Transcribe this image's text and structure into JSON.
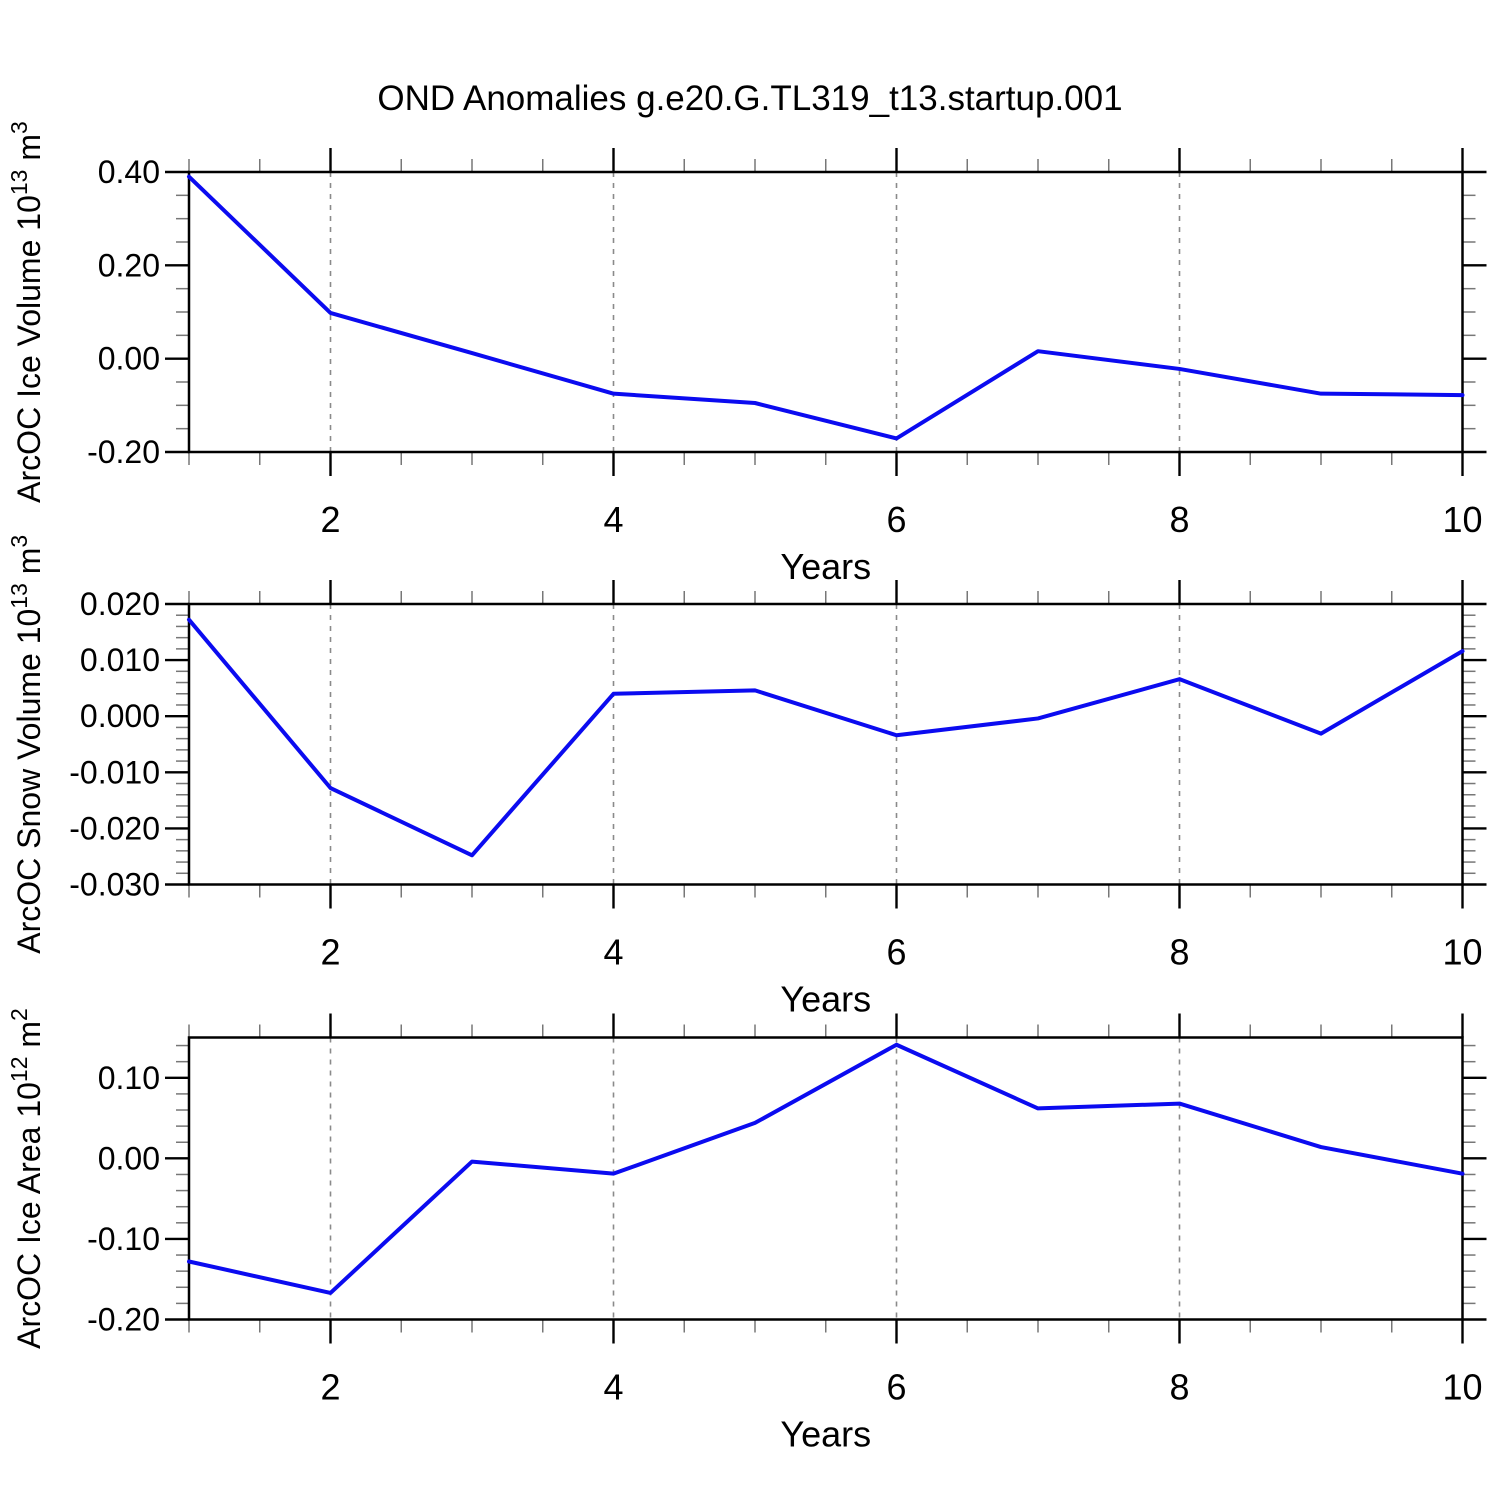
{
  "title": "OND Anomalies g.e20.G.TL319_t13.startup.001",
  "colors": {
    "line": "#0b0bf0",
    "grid": "#8a8a8a",
    "frame": "#000000",
    "minor_tick": "#777777"
  },
  "chart_data": [
    {
      "id": "ice-volume",
      "type": "line",
      "ylabel": "ArcOC Ice Volume 10^13 m^3",
      "ylabel_parts": [
        "ArcOC Ice Volume 10",
        "13",
        " m",
        "3"
      ],
      "xlabel": "Years",
      "x": [
        1,
        2,
        3,
        4,
        5,
        6,
        7,
        8,
        9,
        10
      ],
      "y": [
        0.39,
        0.098,
        0.012,
        -0.075,
        -0.095,
        -0.171,
        0.016,
        -0.022,
        -0.075,
        -0.078
      ],
      "ylim": [
        -0.2,
        0.4
      ],
      "yticks": [
        0.4,
        0.2,
        0.0,
        -0.2
      ],
      "ytick_labels": [
        "0.40",
        "0.20",
        "0.00",
        "-0.20"
      ],
      "y_minor_step": 0.05,
      "xlim": [
        1,
        10
      ],
      "xticks": [
        2,
        4,
        6,
        8,
        10
      ],
      "xtick_labels": [
        "2",
        "4",
        "6",
        "8",
        "10"
      ],
      "x_minor_step": 0.5,
      "grid_x": [
        2,
        4,
        6,
        8
      ],
      "legend": "none",
      "grid": "vertical-dashed"
    },
    {
      "id": "snow-volume",
      "type": "line",
      "ylabel": "ArcOC Snow Volume 10^13 m^3",
      "ylabel_parts": [
        "ArcOC Snow Volume 10",
        "13",
        " m",
        "3"
      ],
      "xlabel": "Years",
      "x": [
        1,
        2,
        3,
        4,
        5,
        6,
        7,
        8,
        9,
        10
      ],
      "y": [
        0.0172,
        -0.0128,
        -0.0248,
        0.004,
        0.0046,
        -0.0034,
        -0.0004,
        0.0066,
        -0.0031,
        0.0116
      ],
      "ylim": [
        -0.03,
        0.02
      ],
      "yticks": [
        0.02,
        0.01,
        0.0,
        -0.01,
        -0.02,
        -0.03
      ],
      "ytick_labels": [
        "0.020",
        "0.010",
        "0.000",
        "-0.010",
        "-0.020",
        "-0.030"
      ],
      "y_minor_step": 0.002,
      "xlim": [
        1,
        10
      ],
      "xticks": [
        2,
        4,
        6,
        8,
        10
      ],
      "xtick_labels": [
        "2",
        "4",
        "6",
        "8",
        "10"
      ],
      "x_minor_step": 0.5,
      "grid_x": [
        2,
        4,
        6,
        8
      ],
      "legend": "none",
      "grid": "vertical-dashed"
    },
    {
      "id": "ice-area",
      "type": "line",
      "ylabel": "ArcOC Ice Area 10^12 m^2",
      "ylabel_parts": [
        "ArcOC Ice Area 10",
        "12",
        " m",
        "2"
      ],
      "xlabel": "Years",
      "x": [
        1,
        2,
        3,
        4,
        5,
        6,
        7,
        8,
        9,
        10
      ],
      "y": [
        -0.128,
        -0.167,
        -0.004,
        -0.019,
        0.044,
        0.141,
        0.062,
        0.068,
        0.014,
        -0.019
      ],
      "ylim": [
        -0.2,
        0.15
      ],
      "yticks": [
        0.1,
        0.0,
        -0.1,
        -0.2
      ],
      "ytick_labels": [
        "0.10",
        "0.00",
        "-0.10",
        "-0.20"
      ],
      "y_minor_step": 0.02,
      "xlim": [
        1,
        10
      ],
      "xticks": [
        2,
        4,
        6,
        8,
        10
      ],
      "xtick_labels": [
        "2",
        "4",
        "6",
        "8",
        "10"
      ],
      "x_minor_step": 0.5,
      "grid_x": [
        2,
        4,
        6,
        8
      ],
      "legend": "none",
      "grid": "vertical-dashed"
    }
  ]
}
